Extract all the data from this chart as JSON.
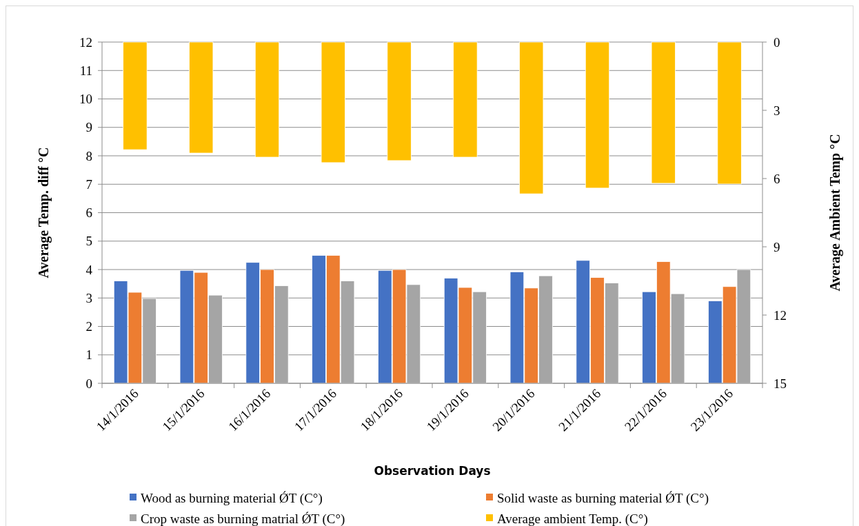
{
  "chart_data": {
    "type": "bar",
    "xlabel": "Observation Days",
    "ylabel": "Average Temp. diff °C",
    "y2label": "Average Ambient  Temp  °C",
    "categories": [
      "14/1/2016",
      "15/1/2016",
      "16/1/2016",
      "17/1/2016",
      "18/1/2016",
      "19/1/2016",
      "20/1/2016",
      "21/1/2016",
      "22/1/2016",
      "23/1/2016"
    ],
    "series": [
      {
        "name": "Wood as burning material ǾT (C°)",
        "color": "#4472c4",
        "values": [
          3.6,
          3.97,
          4.25,
          4.5,
          3.97,
          3.7,
          3.92,
          4.32,
          3.22,
          2.9
        ]
      },
      {
        "name": "Solid waste as burning material ǾT (C°)",
        "color": "#ed7d31",
        "values": [
          3.2,
          3.9,
          4.0,
          4.5,
          4.0,
          3.37,
          3.35,
          3.72,
          4.28,
          3.4
        ]
      },
      {
        "name": "Crop waste as burning matrial ǾT (C°)",
        "color": "#a5a5a5",
        "values": [
          2.98,
          3.1,
          3.43,
          3.6,
          3.47,
          3.22,
          3.78,
          3.53,
          3.15,
          4.0
        ]
      },
      {
        "name": "Average ambient Temp.  (C°)",
        "color": "#ffc000",
        "axis": "y2",
        "values": [
          4.73,
          4.88,
          5.06,
          5.3,
          5.21,
          5.06,
          6.67,
          6.42,
          6.21,
          6.24
        ]
      }
    ],
    "ylim": [
      0,
      12
    ],
    "yticks": [
      0,
      1,
      2,
      3,
      4,
      5,
      6,
      7,
      8,
      9,
      10,
      11,
      12
    ],
    "y2lim": [
      15,
      0
    ],
    "y2ticks": [
      0,
      3,
      6,
      9,
      12,
      15
    ],
    "grid": "y",
    "legend": "bottom"
  }
}
